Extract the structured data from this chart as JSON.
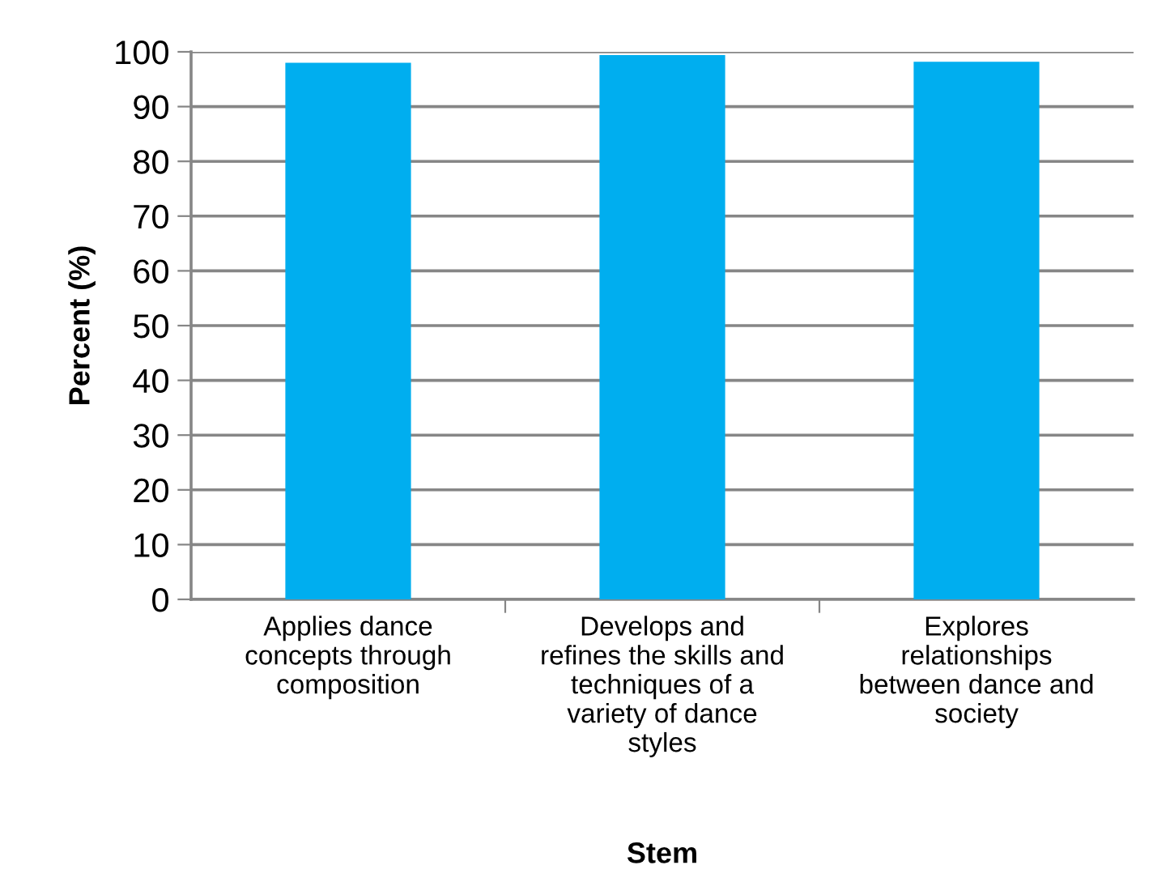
{
  "chart_data": {
    "type": "bar",
    "xlabel": "Stem",
    "ylabel": "Percent (%)",
    "categories": [
      "Applies dance\nconcepts through\ncomposition",
      "Develops and\nrefines the skills and\ntechniques of a\nvariety of dance\nstyles",
      "Explores\nrelationships\nbetween dance and\nsociety"
    ],
    "values": [
      98,
      99.4,
      98.2
    ],
    "color": "#00aeef",
    "ylim": [
      0,
      100
    ],
    "yticks": [
      0,
      10,
      20,
      30,
      40,
      50,
      60,
      70,
      80,
      90,
      100
    ],
    "grid": "y",
    "legend": false
  }
}
